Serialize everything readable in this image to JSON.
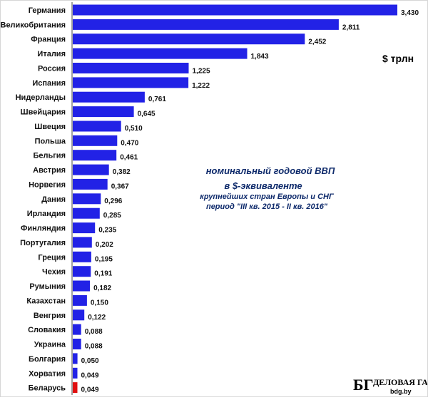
{
  "chart_data": {
    "type": "bar",
    "orientation": "horizontal",
    "categories": [
      "Германия",
      "Великобритания",
      "Франция",
      "Италия",
      "Россия",
      "Испания",
      "Нидерланды",
      "Швейцария",
      "Швеция",
      "Польша",
      "Бельгия",
      "Австрия",
      "Норвегия",
      "Дания",
      "Ирландия",
      "Финляндия",
      "Португалия",
      "Греция",
      "Чехия",
      "Румыния",
      "Казахстан",
      "Венгрия",
      "Словакия",
      "Украина",
      "Болгария",
      "Хорватия",
      "Беларусь"
    ],
    "values": [
      3.43,
      2.811,
      2.452,
      1.843,
      1.225,
      1.222,
      0.761,
      0.645,
      0.51,
      0.47,
      0.461,
      0.382,
      0.367,
      0.296,
      0.285,
      0.235,
      0.202,
      0.195,
      0.191,
      0.182,
      0.15,
      0.122,
      0.088,
      0.088,
      0.05,
      0.049,
      0.049
    ],
    "value_labels": [
      "3,430",
      "2,811",
      "2,452",
      "1,843",
      "1,225",
      "1,222",
      "0,761",
      "0,645",
      "0,510",
      "0,470",
      "0,461",
      "0,382",
      "0,367",
      "0,296",
      "0,285",
      "0,235",
      "0,202",
      "0,195",
      "0,191",
      "0,182",
      "0,150",
      "0,122",
      "0,088",
      "0,088",
      "0,050",
      "0,049",
      "0,049"
    ],
    "highlight": [
      "Беларусь"
    ],
    "unit_label": "$ трлн",
    "title": [
      "номинальный годовой ВВП",
      "в $-эквиваленте"
    ],
    "subtitle": [
      "крупнейших стран Европы и СНГ",
      "период \"III кв. 2015 - II кв. 2016\""
    ],
    "xlim": [
      0,
      3.43
    ],
    "grid": false,
    "legend": "none",
    "colors": {
      "bar": "#2222e6",
      "highlight": "#e01010",
      "axis": "#444444",
      "title": "#0e2a6b"
    }
  },
  "brand": {
    "logo": "БГ",
    "name": "ДЕЛОВАЯ ГАЗЕТА",
    "url": "bdg.by"
  }
}
